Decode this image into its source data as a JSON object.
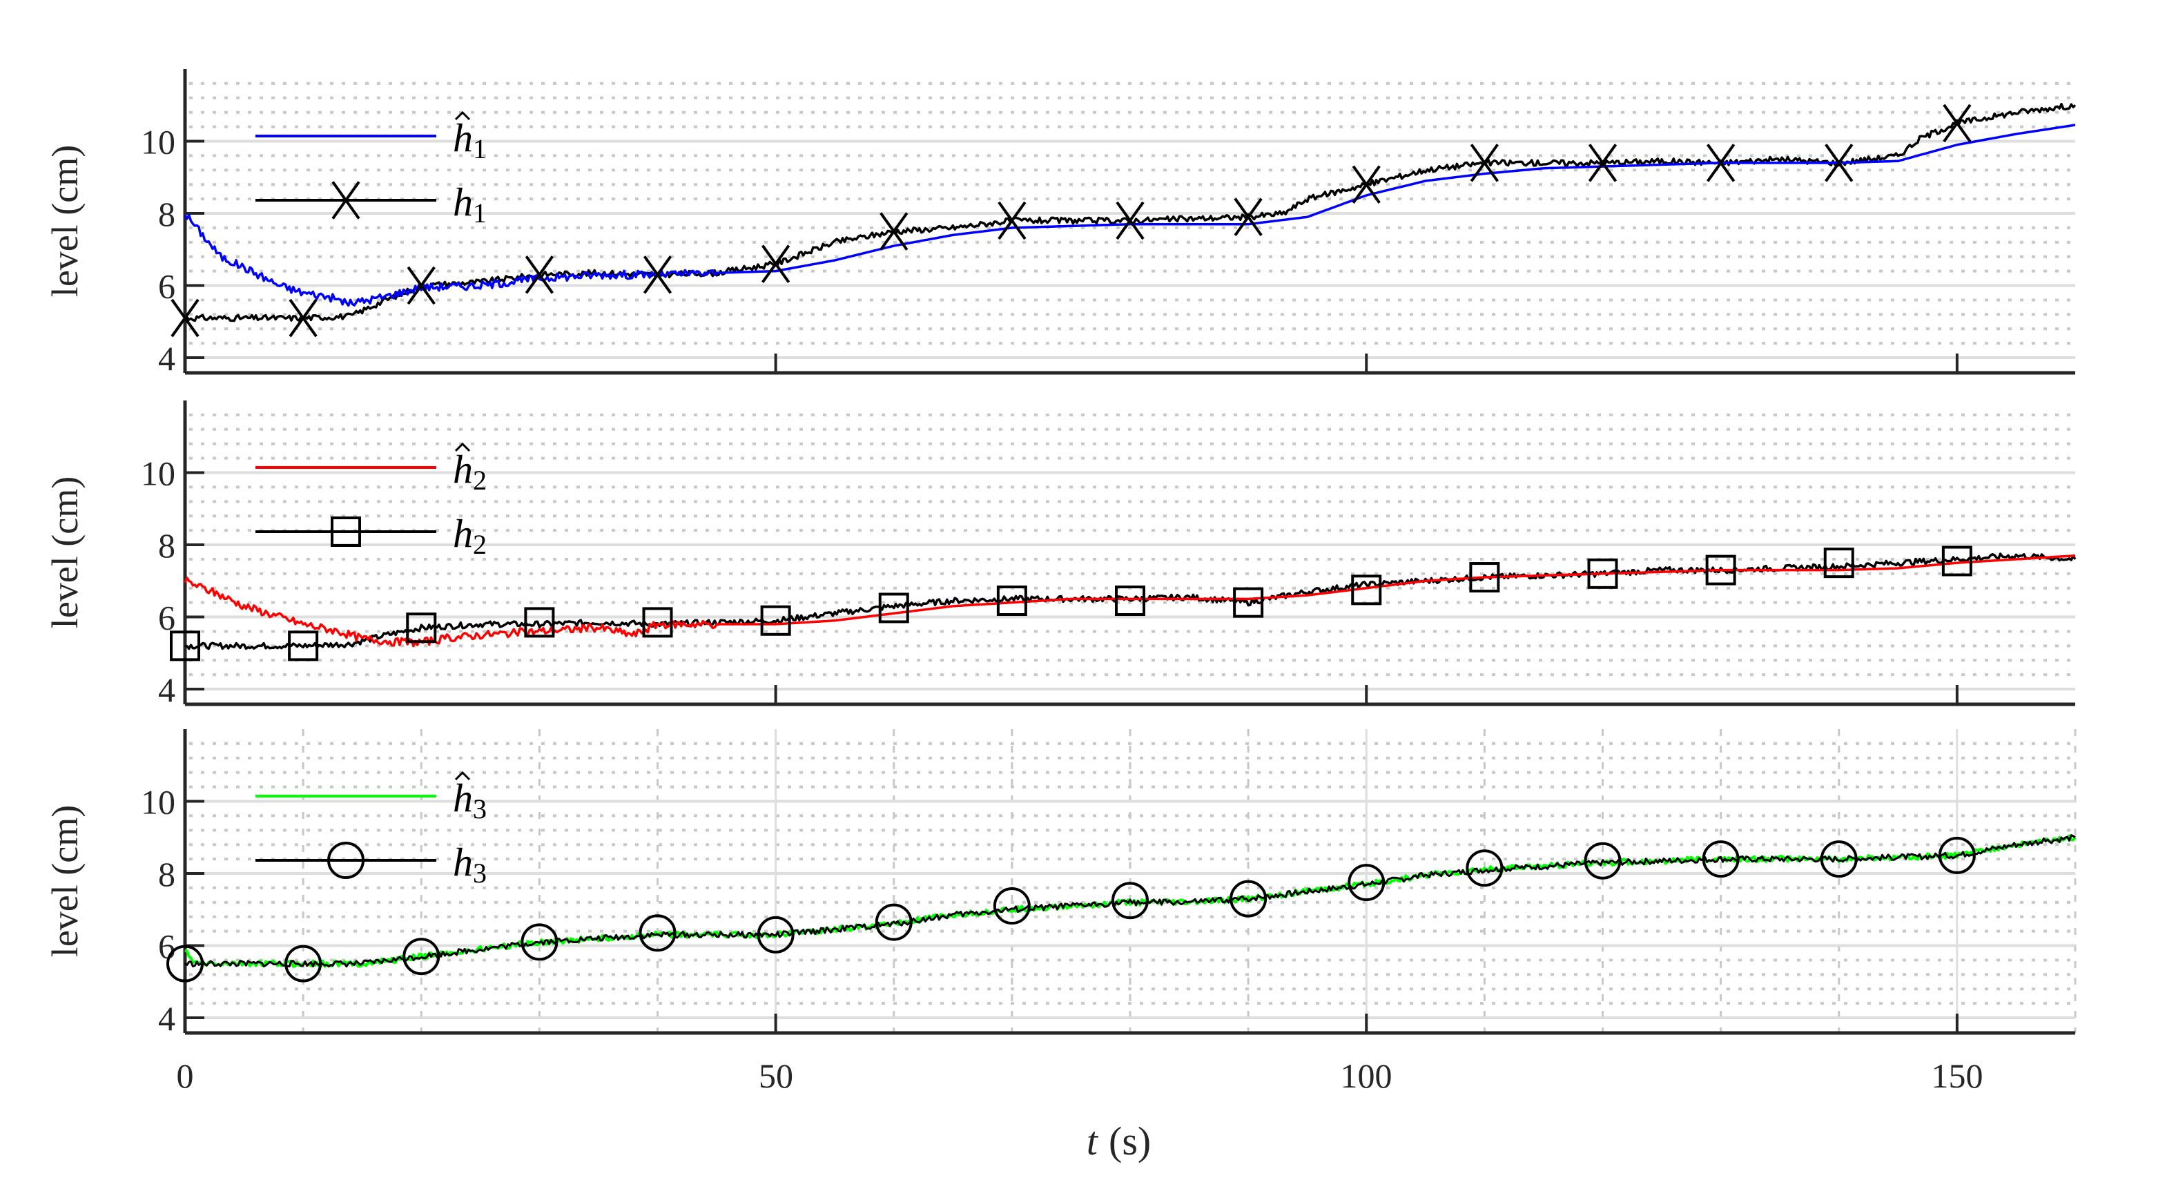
{
  "chart_data": [
    {
      "type": "line",
      "panel": 1,
      "ylabel": "level (cm)",
      "xlabel": "",
      "ylim": [
        3.58,
        12
      ],
      "yticks": [
        4,
        6,
        8,
        10
      ],
      "xlim": [
        0,
        160
      ],
      "grid": {
        "major": true,
        "minor": true
      },
      "legend_position": "upper-left",
      "series": [
        {
          "name": "ĥ1",
          "label_base": "h",
          "label_sub": "1",
          "hat": true,
          "color": "#0000ff",
          "marker": "none",
          "x": [
            0,
            1,
            3,
            5,
            8,
            10,
            12,
            14,
            17,
            20,
            25,
            30,
            35,
            40,
            45,
            50,
            55,
            60,
            65,
            70,
            75,
            80,
            85,
            90,
            95,
            100,
            105,
            110,
            115,
            120,
            125,
            130,
            135,
            140,
            145,
            150,
            155,
            160
          ],
          "y": [
            8.0,
            7.6,
            6.8,
            6.5,
            6.0,
            5.8,
            5.7,
            5.5,
            5.7,
            5.95,
            6.0,
            6.2,
            6.3,
            6.3,
            6.35,
            6.4,
            6.7,
            7.1,
            7.4,
            7.6,
            7.65,
            7.7,
            7.7,
            7.7,
            7.9,
            8.5,
            8.9,
            9.1,
            9.25,
            9.3,
            9.35,
            9.4,
            9.4,
            9.4,
            9.45,
            9.9,
            10.2,
            10.45
          ]
        },
        {
          "name": "h1",
          "label_base": "h",
          "label_sub": "1",
          "hat": false,
          "color": "#000000",
          "marker": "x",
          "x": [
            0,
            5,
            10,
            14,
            17,
            20,
            25,
            30,
            35,
            40,
            45,
            50,
            55,
            60,
            65,
            70,
            75,
            80,
            85,
            90,
            93,
            95,
            100,
            105,
            110,
            115,
            120,
            125,
            130,
            135,
            140,
            145,
            147,
            150,
            155,
            160
          ],
          "y": [
            5.1,
            5.1,
            5.1,
            5.15,
            5.6,
            6.0,
            6.1,
            6.3,
            6.35,
            6.3,
            6.35,
            6.6,
            7.2,
            7.5,
            7.6,
            7.8,
            7.8,
            7.8,
            7.85,
            7.9,
            8.0,
            8.4,
            8.8,
            9.2,
            9.4,
            9.4,
            9.4,
            9.45,
            9.4,
            9.5,
            9.4,
            9.6,
            10.1,
            10.5,
            10.8,
            11.0
          ],
          "marker_x": [
            0,
            10,
            20,
            30,
            40,
            50,
            60,
            70,
            80,
            90,
            100,
            110,
            120,
            130,
            140,
            150
          ],
          "marker_y": [
            5.1,
            5.1,
            6.0,
            6.3,
            6.3,
            6.6,
            7.5,
            7.8,
            7.8,
            7.9,
            8.8,
            9.4,
            9.4,
            9.4,
            9.4,
            10.5
          ]
        }
      ]
    },
    {
      "type": "line",
      "panel": 2,
      "ylabel": "level (cm)",
      "xlabel": "",
      "ylim": [
        3.58,
        12
      ],
      "yticks": [
        4,
        6,
        8,
        10
      ],
      "xlim": [
        0,
        160
      ],
      "grid": {
        "major": true,
        "minor": true
      },
      "legend_position": "upper-left",
      "series": [
        {
          "name": "ĥ2",
          "label_base": "h",
          "label_sub": "2",
          "hat": true,
          "color": "#ff0000",
          "marker": "none",
          "x": [
            0,
            3,
            5,
            8,
            10,
            13,
            15,
            18,
            20,
            22,
            25,
            30,
            35,
            38,
            40,
            45,
            50,
            55,
            60,
            65,
            70,
            75,
            80,
            85,
            90,
            95,
            100,
            105,
            110,
            115,
            120,
            125,
            130,
            135,
            140,
            145,
            150,
            155,
            160
          ],
          "y": [
            7.0,
            6.6,
            6.3,
            6.0,
            5.8,
            5.6,
            5.4,
            5.3,
            5.3,
            5.4,
            5.5,
            5.6,
            5.7,
            5.5,
            5.8,
            5.8,
            5.8,
            5.9,
            6.1,
            6.3,
            6.4,
            6.5,
            6.5,
            6.5,
            6.5,
            6.6,
            6.8,
            7.0,
            7.1,
            7.15,
            7.2,
            7.25,
            7.3,
            7.3,
            7.3,
            7.35,
            7.5,
            7.6,
            7.7
          ]
        },
        {
          "name": "h2",
          "label_base": "h",
          "label_sub": "2",
          "hat": false,
          "color": "#000000",
          "marker": "square",
          "x": [
            0,
            5,
            10,
            14,
            17,
            20,
            25,
            30,
            35,
            40,
            45,
            50,
            55,
            60,
            65,
            70,
            75,
            80,
            85,
            90,
            95,
            100,
            105,
            110,
            115,
            120,
            125,
            130,
            135,
            140,
            145,
            150,
            155,
            160
          ],
          "y": [
            5.2,
            5.2,
            5.2,
            5.25,
            5.5,
            5.7,
            5.8,
            5.8,
            5.85,
            5.8,
            5.85,
            5.9,
            6.1,
            6.3,
            6.45,
            6.5,
            6.5,
            6.5,
            6.55,
            6.4,
            6.7,
            6.9,
            7.0,
            7.1,
            7.15,
            7.2,
            7.3,
            7.3,
            7.35,
            7.4,
            7.5,
            7.6,
            7.7,
            7.6
          ],
          "marker_x": [
            0,
            10,
            20,
            30,
            40,
            50,
            60,
            70,
            80,
            90,
            100,
            110,
            120,
            130,
            140,
            150
          ],
          "marker_y": [
            5.2,
            5.2,
            5.7,
            5.85,
            5.85,
            5.9,
            6.25,
            6.45,
            6.45,
            6.4,
            6.75,
            7.1,
            7.2,
            7.3,
            7.5,
            7.55
          ]
        }
      ]
    },
    {
      "type": "line",
      "panel": 3,
      "ylabel": "level (cm)",
      "xlabel": "t (s)",
      "ylim": [
        3.58,
        12
      ],
      "yticks": [
        4,
        6,
        8,
        10
      ],
      "xlim": [
        0,
        160
      ],
      "xticks": [
        0,
        50,
        100,
        150
      ],
      "grid": {
        "major": true,
        "minor": true,
        "vertical": true
      },
      "legend_position": "upper-left",
      "series": [
        {
          "name": "ĥ3",
          "label_base": "h",
          "label_sub": "3",
          "hat": true,
          "color": "#00ff00",
          "marker": "none",
          "x": [
            0,
            0.5,
            1,
            5,
            10,
            15,
            20,
            25,
            30,
            35,
            40,
            45,
            50,
            55,
            60,
            65,
            70,
            75,
            80,
            85,
            90,
            95,
            100,
            105,
            110,
            115,
            120,
            125,
            130,
            135,
            140,
            145,
            150,
            155,
            160
          ],
          "y": [
            5.9,
            5.6,
            5.5,
            5.5,
            5.5,
            5.5,
            5.7,
            5.9,
            6.1,
            6.2,
            6.3,
            6.3,
            6.3,
            6.45,
            6.6,
            6.85,
            7.0,
            7.1,
            7.2,
            7.2,
            7.3,
            7.5,
            7.7,
            7.95,
            8.1,
            8.2,
            8.3,
            8.35,
            8.4,
            8.4,
            8.4,
            8.45,
            8.5,
            8.8,
            9.0
          ]
        },
        {
          "name": "h3",
          "label_base": "h",
          "label_sub": "3",
          "hat": false,
          "color": "#000000",
          "marker": "circle",
          "x": [
            0,
            5,
            10,
            15,
            20,
            25,
            30,
            35,
            40,
            45,
            50,
            55,
            60,
            65,
            70,
            75,
            80,
            85,
            90,
            95,
            100,
            105,
            110,
            115,
            120,
            125,
            130,
            135,
            140,
            145,
            150,
            155,
            160
          ],
          "y": [
            5.5,
            5.5,
            5.5,
            5.5,
            5.7,
            5.9,
            6.1,
            6.2,
            6.3,
            6.3,
            6.3,
            6.45,
            6.6,
            6.85,
            7.0,
            7.1,
            7.2,
            7.2,
            7.3,
            7.5,
            7.7,
            7.95,
            8.1,
            8.2,
            8.3,
            8.35,
            8.4,
            8.4,
            8.4,
            8.45,
            8.5,
            8.8,
            9.0
          ],
          "marker_x": [
            0,
            10,
            20,
            30,
            40,
            50,
            60,
            70,
            80,
            90,
            100,
            110,
            120,
            130,
            140,
            150
          ],
          "marker_y": [
            5.5,
            5.5,
            5.7,
            6.1,
            6.35,
            6.3,
            6.65,
            7.1,
            7.25,
            7.3,
            7.75,
            8.15,
            8.35,
            8.4,
            8.4,
            8.5
          ]
        }
      ]
    }
  ],
  "axes": {
    "ylabel": "level (cm)",
    "xlabel_var": "t",
    "xlabel_unit": "(s)",
    "xtick_labels": [
      "0",
      "50",
      "100",
      "150"
    ],
    "ytick_labels": [
      "4",
      "6",
      "8",
      "10"
    ]
  },
  "legends": [
    {
      "items": [
        {
          "base": "h",
          "sub": "1",
          "hat": true,
          "color": "#0000ff",
          "marker": "none"
        },
        {
          "base": "h",
          "sub": "1",
          "hat": false,
          "color": "#000000",
          "marker": "x"
        }
      ]
    },
    {
      "items": [
        {
          "base": "h",
          "sub": "2",
          "hat": true,
          "color": "#ff0000",
          "marker": "none"
        },
        {
          "base": "h",
          "sub": "2",
          "hat": false,
          "color": "#000000",
          "marker": "square"
        }
      ]
    },
    {
      "items": [
        {
          "base": "h",
          "sub": "3",
          "hat": true,
          "color": "#00ff00",
          "marker": "none"
        },
        {
          "base": "h",
          "sub": "3",
          "hat": false,
          "color": "#000000",
          "marker": "circle"
        }
      ]
    }
  ],
  "colors": {
    "axis": "#262626",
    "major_grid": "#dedede",
    "minor_grid": "#c8c8c8"
  }
}
